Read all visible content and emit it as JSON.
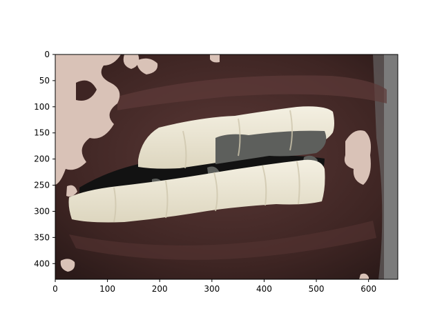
{
  "chart_data": {
    "type": "image",
    "title": "",
    "xlabel": "",
    "ylabel": "",
    "image_size": [
      656,
      430
    ],
    "xlim": [
      0,
      656
    ],
    "ylim": [
      430,
      0
    ],
    "y_inverted": true,
    "x_ticks": [
      {
        "value": 0,
        "label": "0"
      },
      {
        "value": 100,
        "label": "100"
      },
      {
        "value": 200,
        "label": "200"
      },
      {
        "value": 300,
        "label": "300"
      },
      {
        "value": 400,
        "label": "400"
      },
      {
        "value": 500,
        "label": "500"
      },
      {
        "value": 600,
        "label": "600"
      }
    ],
    "y_ticks": [
      {
        "value": 0,
        "label": "0"
      },
      {
        "value": 50,
        "label": "50"
      },
      {
        "value": 100,
        "label": "100"
      },
      {
        "value": 150,
        "label": "150"
      },
      {
        "value": 200,
        "label": "200"
      },
      {
        "value": 250,
        "label": "250"
      },
      {
        "value": 300,
        "label": "300"
      },
      {
        "value": 350,
        "label": "350"
      },
      {
        "value": 400,
        "label": "400"
      }
    ],
    "grid": false,
    "legend": "none",
    "image_subject": "close-up photo of mouth with teeth, partially masked with skin-tone patches",
    "colors": {
      "lip": "#3e2523",
      "lip_highlight": "#6a4442",
      "skin_patch": "#d8bfb3",
      "teeth": "#ebe5d2",
      "masked_region": "#5d5f5c",
      "mouth_cavity": "#121212",
      "background_right": "#8f8f8f"
    }
  }
}
